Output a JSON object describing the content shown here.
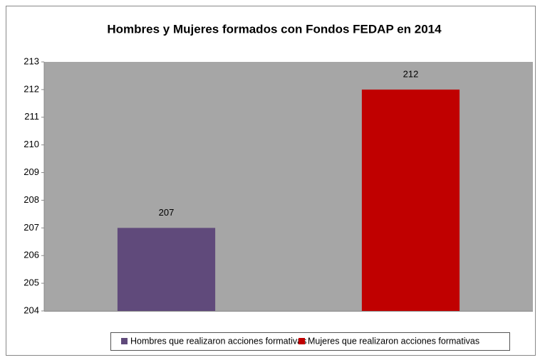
{
  "chart_data": {
    "type": "bar",
    "title": "Hombres y Mujeres formados  con Fondos FEDAP en 2014",
    "categories": [
      null,
      null
    ],
    "series": [
      {
        "name": "Hombres que realizaron acciones formativas",
        "color": "#604a7b",
        "values": [
          207,
          null
        ]
      },
      {
        "name": "Mujeres que realizaron acciones formativas",
        "color": "#c00000",
        "values": [
          null,
          212
        ]
      }
    ],
    "ylim": [
      204,
      213
    ],
    "yticks": [
      204,
      205,
      206,
      207,
      208,
      209,
      210,
      211,
      212,
      213
    ],
    "grid": false,
    "legend": "bottom",
    "plot_background": "#a6a6a6"
  }
}
